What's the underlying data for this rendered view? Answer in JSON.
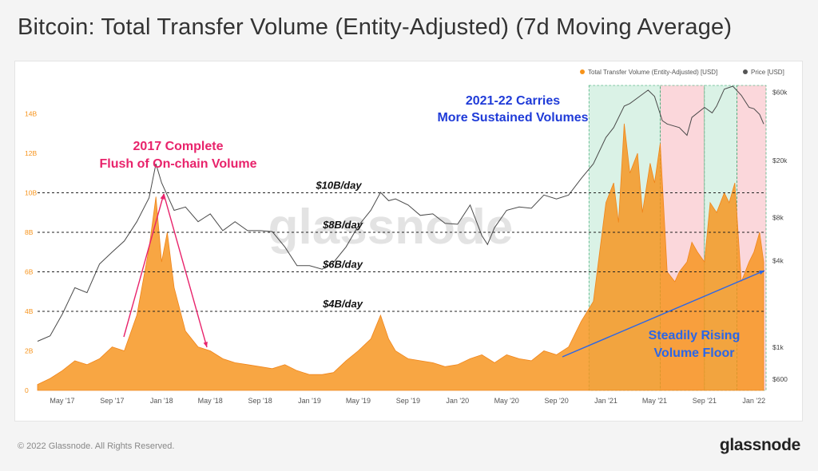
{
  "title": "Bitcoin: Total Transfer Volume (Entity-Adjusted) (7d Moving Average)",
  "footer": {
    "copyright": "© 2022 Glassnode. All Rights Reserved.",
    "brand": "glassnode"
  },
  "watermark": "glassnode",
  "colors": {
    "volume": "#f7931a",
    "price": "#4a4a4a",
    "bull_shade": "#cdeedd",
    "bear_shade": "#f9c9cf",
    "pink": "#e8236b",
    "blue": "#1f3bd8"
  },
  "chart_data": {
    "type": "area",
    "xlabel": "",
    "ylabel": "",
    "x_ticks": [
      "May '17",
      "Sep '17",
      "Jan '18",
      "May '18",
      "Sep '18",
      "Jan '19",
      "May '19",
      "Sep '19",
      "Jan '20",
      "May '20",
      "Sep '20",
      "Jan '21",
      "May '21",
      "Sep '21",
      "Jan '22"
    ],
    "y_left": {
      "ticks": [
        "0",
        "2B",
        "4B",
        "6B",
        "8B",
        "10B",
        "12B",
        "14B"
      ],
      "range": [
        0,
        16000000000
      ]
    },
    "y_right": {
      "ticks": [
        "$600",
        "$1k",
        "$4k",
        "$8k",
        "$20k",
        "$60k"
      ],
      "scale": "log",
      "range": [
        500,
        80000
      ]
    },
    "legend": {
      "position": "top-right",
      "entries": [
        "Total Transfer Volume (Entity-Adjusted) [USD]",
        "Price [USD]"
      ]
    },
    "grid": false,
    "series": [
      {
        "name": "Total Transfer Volume (Entity-Adjusted) [USD]",
        "axis": "left",
        "unit": "USD",
        "points": [
          [
            "2017-03-01",
            0.3
          ],
          [
            "2017-04-01",
            0.6
          ],
          [
            "2017-05-01",
            1.0
          ],
          [
            "2017-06-01",
            1.5
          ],
          [
            "2017-07-01",
            1.3
          ],
          [
            "2017-08-01",
            1.6
          ],
          [
            "2017-09-01",
            2.2
          ],
          [
            "2017-10-01",
            2.0
          ],
          [
            "2017-11-01",
            3.8
          ],
          [
            "2017-12-01",
            7.2
          ],
          [
            "2017-12-18",
            9.8
          ],
          [
            "2018-01-01",
            6.5
          ],
          [
            "2018-01-15",
            8.0
          ],
          [
            "2018-02-01",
            5.2
          ],
          [
            "2018-03-01",
            3.0
          ],
          [
            "2018-04-01",
            2.2
          ],
          [
            "2018-05-01",
            2.0
          ],
          [
            "2018-06-01",
            1.6
          ],
          [
            "2018-07-01",
            1.4
          ],
          [
            "2018-08-01",
            1.3
          ],
          [
            "2018-09-01",
            1.2
          ],
          [
            "2018-10-01",
            1.1
          ],
          [
            "2018-11-01",
            1.3
          ],
          [
            "2018-12-01",
            1.0
          ],
          [
            "2019-01-01",
            0.8
          ],
          [
            "2019-02-01",
            0.8
          ],
          [
            "2019-03-01",
            0.9
          ],
          [
            "2019-04-01",
            1.5
          ],
          [
            "2019-05-01",
            2.0
          ],
          [
            "2019-06-01",
            2.6
          ],
          [
            "2019-06-25",
            3.8
          ],
          [
            "2019-07-15",
            2.6
          ],
          [
            "2019-08-01",
            2.0
          ],
          [
            "2019-09-01",
            1.6
          ],
          [
            "2019-10-01",
            1.5
          ],
          [
            "2019-11-01",
            1.4
          ],
          [
            "2019-12-01",
            1.2
          ],
          [
            "2020-01-01",
            1.3
          ],
          [
            "2020-02-01",
            1.6
          ],
          [
            "2020-03-01",
            1.8
          ],
          [
            "2020-04-01",
            1.4
          ],
          [
            "2020-05-01",
            1.8
          ],
          [
            "2020-06-01",
            1.6
          ],
          [
            "2020-07-01",
            1.5
          ],
          [
            "2020-08-01",
            2.0
          ],
          [
            "2020-09-01",
            1.8
          ],
          [
            "2020-10-01",
            2.2
          ],
          [
            "2020-11-01",
            3.5
          ],
          [
            "2020-12-01",
            4.5
          ],
          [
            "2021-01-01",
            9.5
          ],
          [
            "2021-01-20",
            10.5
          ],
          [
            "2021-02-01",
            8.5
          ],
          [
            "2021-02-15",
            13.5
          ],
          [
            "2021-03-01",
            11.0
          ],
          [
            "2021-03-20",
            12.0
          ],
          [
            "2021-04-01",
            9.0
          ],
          [
            "2021-04-20",
            11.5
          ],
          [
            "2021-05-01",
            10.5
          ],
          [
            "2021-05-15",
            12.5
          ],
          [
            "2021-06-01",
            6.0
          ],
          [
            "2021-06-20",
            5.5
          ],
          [
            "2021-07-01",
            6.0
          ],
          [
            "2021-07-20",
            6.5
          ],
          [
            "2021-08-01",
            7.5
          ],
          [
            "2021-08-15",
            7.0
          ],
          [
            "2021-09-01",
            6.5
          ],
          [
            "2021-09-15",
            9.5
          ],
          [
            "2021-10-01",
            9.0
          ],
          [
            "2021-10-20",
            10.0
          ],
          [
            "2021-11-01",
            9.5
          ],
          [
            "2021-11-15",
            10.5
          ],
          [
            "2021-12-01",
            5.5
          ],
          [
            "2021-12-20",
            6.5
          ],
          [
            "2022-01-01",
            7.0
          ],
          [
            "2022-01-15",
            8.0
          ],
          [
            "2022-01-25",
            6.5
          ]
        ]
      },
      {
        "name": "Price [USD]",
        "axis": "right",
        "unit": "USD",
        "points": [
          [
            "2017-03-01",
            1100
          ],
          [
            "2017-04-01",
            1200
          ],
          [
            "2017-05-01",
            1700
          ],
          [
            "2017-06-01",
            2600
          ],
          [
            "2017-07-01",
            2400
          ],
          [
            "2017-08-01",
            3800
          ],
          [
            "2017-09-01",
            4600
          ],
          [
            "2017-10-01",
            5500
          ],
          [
            "2017-11-01",
            7500
          ],
          [
            "2017-12-01",
            11000
          ],
          [
            "2017-12-18",
            19000
          ],
          [
            "2018-01-01",
            14000
          ],
          [
            "2018-02-01",
            9000
          ],
          [
            "2018-03-01",
            9500
          ],
          [
            "2018-04-01",
            7500
          ],
          [
            "2018-05-01",
            8500
          ],
          [
            "2018-06-01",
            6500
          ],
          [
            "2018-07-01",
            7500
          ],
          [
            "2018-08-01",
            6500
          ],
          [
            "2018-09-01",
            6500
          ],
          [
            "2018-10-01",
            6400
          ],
          [
            "2018-11-01",
            5000
          ],
          [
            "2018-12-01",
            3700
          ],
          [
            "2019-01-01",
            3700
          ],
          [
            "2019-02-01",
            3500
          ],
          [
            "2019-03-01",
            3900
          ],
          [
            "2019-04-01",
            5000
          ],
          [
            "2019-05-01",
            7000
          ],
          [
            "2019-06-01",
            9000
          ],
          [
            "2019-06-25",
            12000
          ],
          [
            "2019-07-15",
            10500
          ],
          [
            "2019-08-01",
            10800
          ],
          [
            "2019-09-01",
            9800
          ],
          [
            "2019-10-01",
            8300
          ],
          [
            "2019-11-01",
            8500
          ],
          [
            "2019-12-01",
            7300
          ],
          [
            "2020-01-01",
            7200
          ],
          [
            "2020-02-01",
            9800
          ],
          [
            "2020-03-01",
            6000
          ],
          [
            "2020-03-15",
            5200
          ],
          [
            "2020-04-01",
            6800
          ],
          [
            "2020-05-01",
            9000
          ],
          [
            "2020-06-01",
            9500
          ],
          [
            "2020-07-01",
            9300
          ],
          [
            "2020-08-01",
            11500
          ],
          [
            "2020-09-01",
            10800
          ],
          [
            "2020-10-01",
            11500
          ],
          [
            "2020-11-01",
            15000
          ],
          [
            "2020-12-01",
            19000
          ],
          [
            "2021-01-01",
            29000
          ],
          [
            "2021-01-20",
            34000
          ],
          [
            "2021-02-15",
            48000
          ],
          [
            "2021-03-01",
            50000
          ],
          [
            "2021-04-01",
            58000
          ],
          [
            "2021-04-15",
            62000
          ],
          [
            "2021-05-01",
            56000
          ],
          [
            "2021-05-20",
            38000
          ],
          [
            "2021-06-01",
            36000
          ],
          [
            "2021-07-01",
            34000
          ],
          [
            "2021-07-20",
            30000
          ],
          [
            "2021-08-01",
            40000
          ],
          [
            "2021-09-01",
            47000
          ],
          [
            "2021-09-20",
            43000
          ],
          [
            "2021-10-01",
            48000
          ],
          [
            "2021-10-20",
            63000
          ],
          [
            "2021-11-10",
            66000
          ],
          [
            "2021-12-01",
            57000
          ],
          [
            "2021-12-20",
            47000
          ],
          [
            "2022-01-01",
            46000
          ],
          [
            "2022-01-15",
            42000
          ],
          [
            "2022-01-25",
            36000
          ]
        ]
      }
    ],
    "shaded_periods": [
      {
        "start": "2020-11-20",
        "end": "2021-05-15",
        "color": "green"
      },
      {
        "start": "2021-05-15",
        "end": "2021-09-01",
        "color": "pink"
      },
      {
        "start": "2021-09-01",
        "end": "2021-11-20",
        "color": "green"
      },
      {
        "start": "2021-11-20",
        "end": "2022-01-31",
        "color": "pink"
      }
    ],
    "reference_lines": [
      {
        "value": 10,
        "label": "$10B/day"
      },
      {
        "value": 8,
        "label": "$8B/day"
      },
      {
        "value": 6,
        "label": "$6B/day"
      },
      {
        "value": 4,
        "label": "$4B/day"
      }
    ],
    "annotations": {
      "pink_title_line1": "2017 Complete",
      "pink_title_line2": "Flush of On-chain Volume",
      "blue_title_line1": "2021-22 Carries",
      "blue_title_line2": "More Sustained Volumes",
      "floor_line1": "Steadily Rising",
      "floor_line2": "Volume Floor"
    }
  }
}
